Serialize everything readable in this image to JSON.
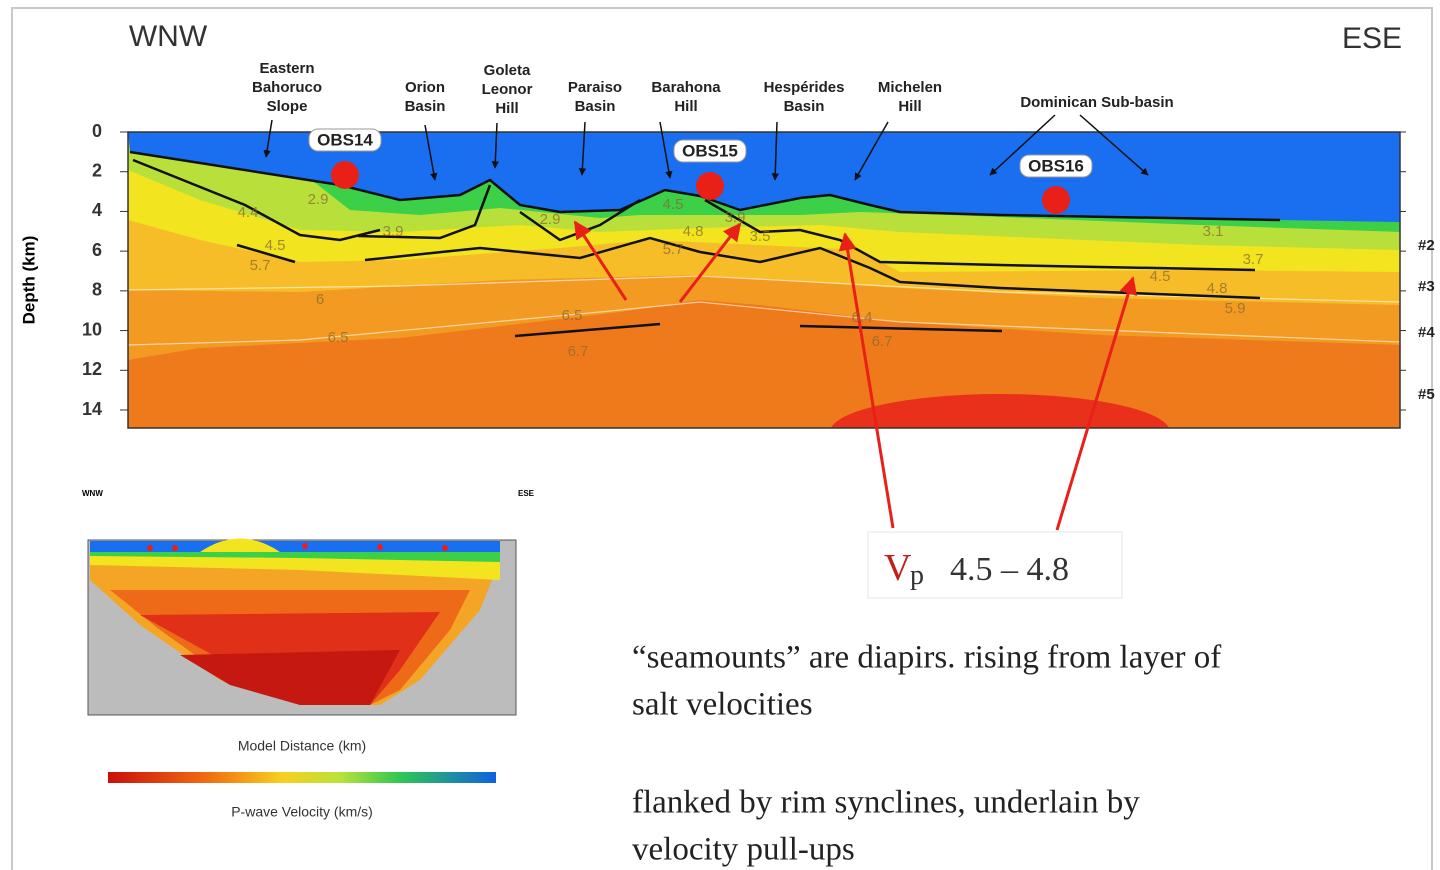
{
  "figure": {
    "direction_left": "WNW",
    "direction_right": "ESE",
    "y_axis_label": "Depth (km)",
    "depth_ticks": [
      0,
      2,
      4,
      6,
      8,
      10,
      12,
      14
    ],
    "features": [
      {
        "lines": [
          "Eastern",
          "Bahoruco",
          "Slope"
        ]
      },
      {
        "lines": [
          "Orion",
          "Basin"
        ]
      },
      {
        "lines": [
          "Goleta",
          "Leonor",
          "Hill"
        ]
      },
      {
        "lines": [
          "Paraiso",
          "Basin"
        ]
      },
      {
        "lines": [
          "Barahona",
          "Hill"
        ]
      },
      {
        "lines": [
          "Hespérides",
          "Basin"
        ]
      },
      {
        "lines": [
          "Michelen",
          "Hill"
        ]
      },
      {
        "lines": [
          "Dominican Sub-basin"
        ]
      }
    ],
    "stations": [
      "OBS14",
      "OBS15",
      "OBS16"
    ],
    "velocity_labels": [
      "2.9",
      "4.4",
      "4.5",
      "5.7",
      "3.9",
      "6",
      "6.5",
      "2.9",
      "4.5",
      "4.8",
      "5.7",
      "3.9",
      "3.5",
      "6.5",
      "6.7",
      "6.4",
      "6.7",
      "3.1",
      "3.7",
      "4.5",
      "4.8",
      "5.9"
    ],
    "reflectors": [
      "#2",
      "#3",
      "#4",
      "#5"
    ]
  },
  "inset": {
    "direction_left": "WNW",
    "direction_right": "ESE",
    "x_axis_label": "Model Distance (km)",
    "color_bar_label": "P-wave Velocity (km/s)"
  },
  "callout": {
    "symbol": "V",
    "subscript": "p",
    "range": "4.5 – 4.8"
  },
  "notes": [
    {
      "lines": [
        "“seamounts” are diapirs. rising from layer of",
        "salt velocities"
      ]
    },
    {
      "lines": [
        "flanked by rim synclines, underlain by",
        "velocity pull-ups"
      ]
    }
  ]
}
